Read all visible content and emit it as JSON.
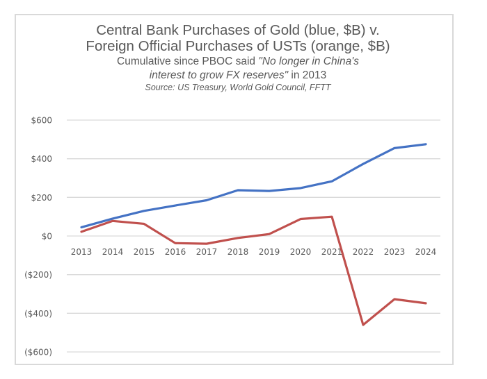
{
  "chart_data": {
    "type": "line",
    "title_lines": [
      "Central Bank Purchases of Gold (blue, $B) v.",
      "Foreign Official Purchases of USTs (orange, $B)"
    ],
    "subtitle": {
      "line1_plain": "Cumulative since PBOC said ",
      "line1_italic": "\"No longer in China's",
      "line2_italic": "interest to grow FX reserves\"",
      "line2_plain": " in 2013"
    },
    "source": "Source: US Treasury, World Gold Council, FFTT",
    "xlabel": "",
    "ylabel": "",
    "categories": [
      "2013",
      "2014",
      "2015",
      "2016",
      "2017",
      "2018",
      "2019",
      "2020",
      "2021",
      "2022",
      "2023",
      "2024"
    ],
    "ylim": [
      -600,
      600
    ],
    "yticks": [
      600,
      400,
      200,
      0,
      -200,
      -400,
      -600
    ],
    "ytick_labels": [
      "$600",
      "$400",
      "$200",
      "$0",
      "($200)",
      "($400)",
      "($600)"
    ],
    "grid": true,
    "legend": "none",
    "series": [
      {
        "name": "Central Bank Purchases of Gold",
        "color": "#4472C4",
        "values": [
          45,
          90,
          130,
          158,
          185,
          237,
          233,
          248,
          283,
          373,
          455,
          475
        ]
      },
      {
        "name": "Foreign Official Purchases of USTs",
        "color": "#C0504D",
        "values": [
          22,
          78,
          63,
          -37,
          -40,
          -10,
          10,
          88,
          100,
          -460,
          -327,
          -348
        ]
      }
    ],
    "colors": {
      "text": "#595959",
      "grid": "#d9d9d9",
      "frame": "#d9d9d9"
    }
  }
}
